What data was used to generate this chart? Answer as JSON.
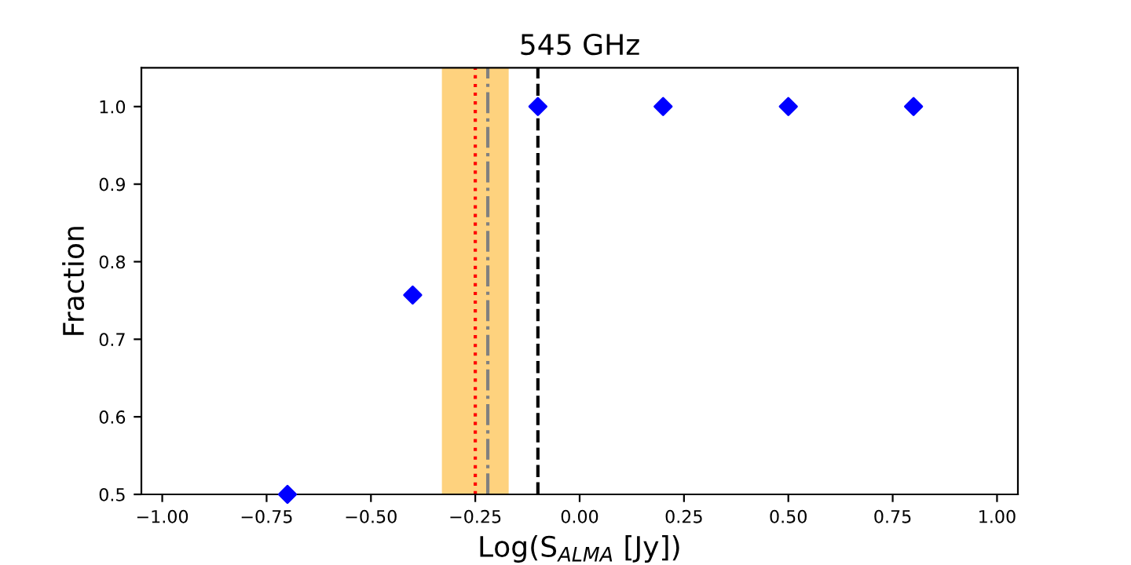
{
  "chart_data": {
    "type": "scatter",
    "title": "545 GHz",
    "xlabel": "Log(S$_{ALMA}$ [Jy])",
    "ylabel": "Fraction",
    "x": [
      -0.7,
      -0.4,
      -0.1,
      0.2,
      0.5,
      0.8
    ],
    "series": [
      {
        "color": "#0000ff",
        "values": [
          0.5,
          0.757,
          1.0,
          1.0,
          1.0,
          1.0
        ]
      }
    ],
    "marker": "diamond",
    "grid": false,
    "legend": false,
    "xlim": [
      -1.05,
      1.05
    ],
    "xticks": [
      {
        "value": -1,
        "label": "−1.00"
      },
      {
        "value": -0.75,
        "label": "−0.75"
      },
      {
        "value": -0.5,
        "label": "−0.50"
      },
      {
        "value": -0.25,
        "label": "−0.25"
      },
      {
        "value": 0,
        "label": "0.00"
      },
      {
        "value": 0.25,
        "label": "0.25"
      },
      {
        "value": 0.5,
        "label": "0.50"
      },
      {
        "value": 0.75,
        "label": "0.75"
      },
      {
        "value": 1,
        "label": "1.00"
      }
    ],
    "ylim": [
      0.5,
      1.05
    ],
    "yticks": [
      {
        "value": 0.5,
        "label": "0.5"
      },
      {
        "value": 0.6,
        "label": "0.6"
      },
      {
        "value": 0.7,
        "label": "0.7"
      },
      {
        "value": 0.8,
        "label": "0.8"
      },
      {
        "value": 0.9,
        "label": "0.9"
      },
      {
        "value": 1.0,
        "label": "1.0"
      }
    ],
    "bands": [
      {
        "axis": "x",
        "from": -0.33,
        "to": -0.17,
        "color": "#fed27e"
      }
    ],
    "ref_lines": [
      {
        "axis": "x",
        "value": -0.25,
        "color": "#ff0000",
        "line_style": "dotted"
      },
      {
        "axis": "x",
        "value": -0.22,
        "color": "#808080",
        "line_style": "dashdot"
      },
      {
        "axis": "x",
        "value": -0.1,
        "color": "#000000",
        "line_style": "dashed"
      }
    ]
  }
}
